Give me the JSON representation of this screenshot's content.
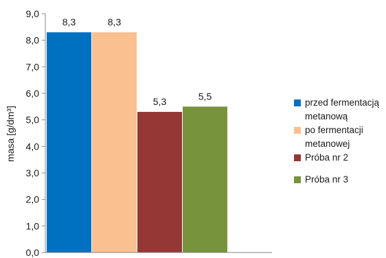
{
  "chart_data": {
    "type": "bar",
    "ylabel": "masa [g/dm³]",
    "xlabel": "",
    "ylim": [
      0,
      9
    ],
    "yticks": [
      "0,0",
      "1,0",
      "2,0",
      "3,0",
      "4,0",
      "5,0",
      "6,0",
      "7,0",
      "8,0",
      "9,0"
    ],
    "legend_position": "right",
    "series": [
      {
        "name": "przed fermentacją metanową",
        "value": 8.3,
        "label": "8,3",
        "color": "#0070C0"
      },
      {
        "name": "po fermentacji metanowej",
        "value": 8.3,
        "label": "8,3",
        "color": "#FAC090"
      },
      {
        "name": "Próba nr 2",
        "value": 5.3,
        "label": "5,3",
        "color": "#953735"
      },
      {
        "name": "Próba nr 3",
        "value": 5.5,
        "label": "5,5",
        "color": "#77933C"
      }
    ]
  }
}
